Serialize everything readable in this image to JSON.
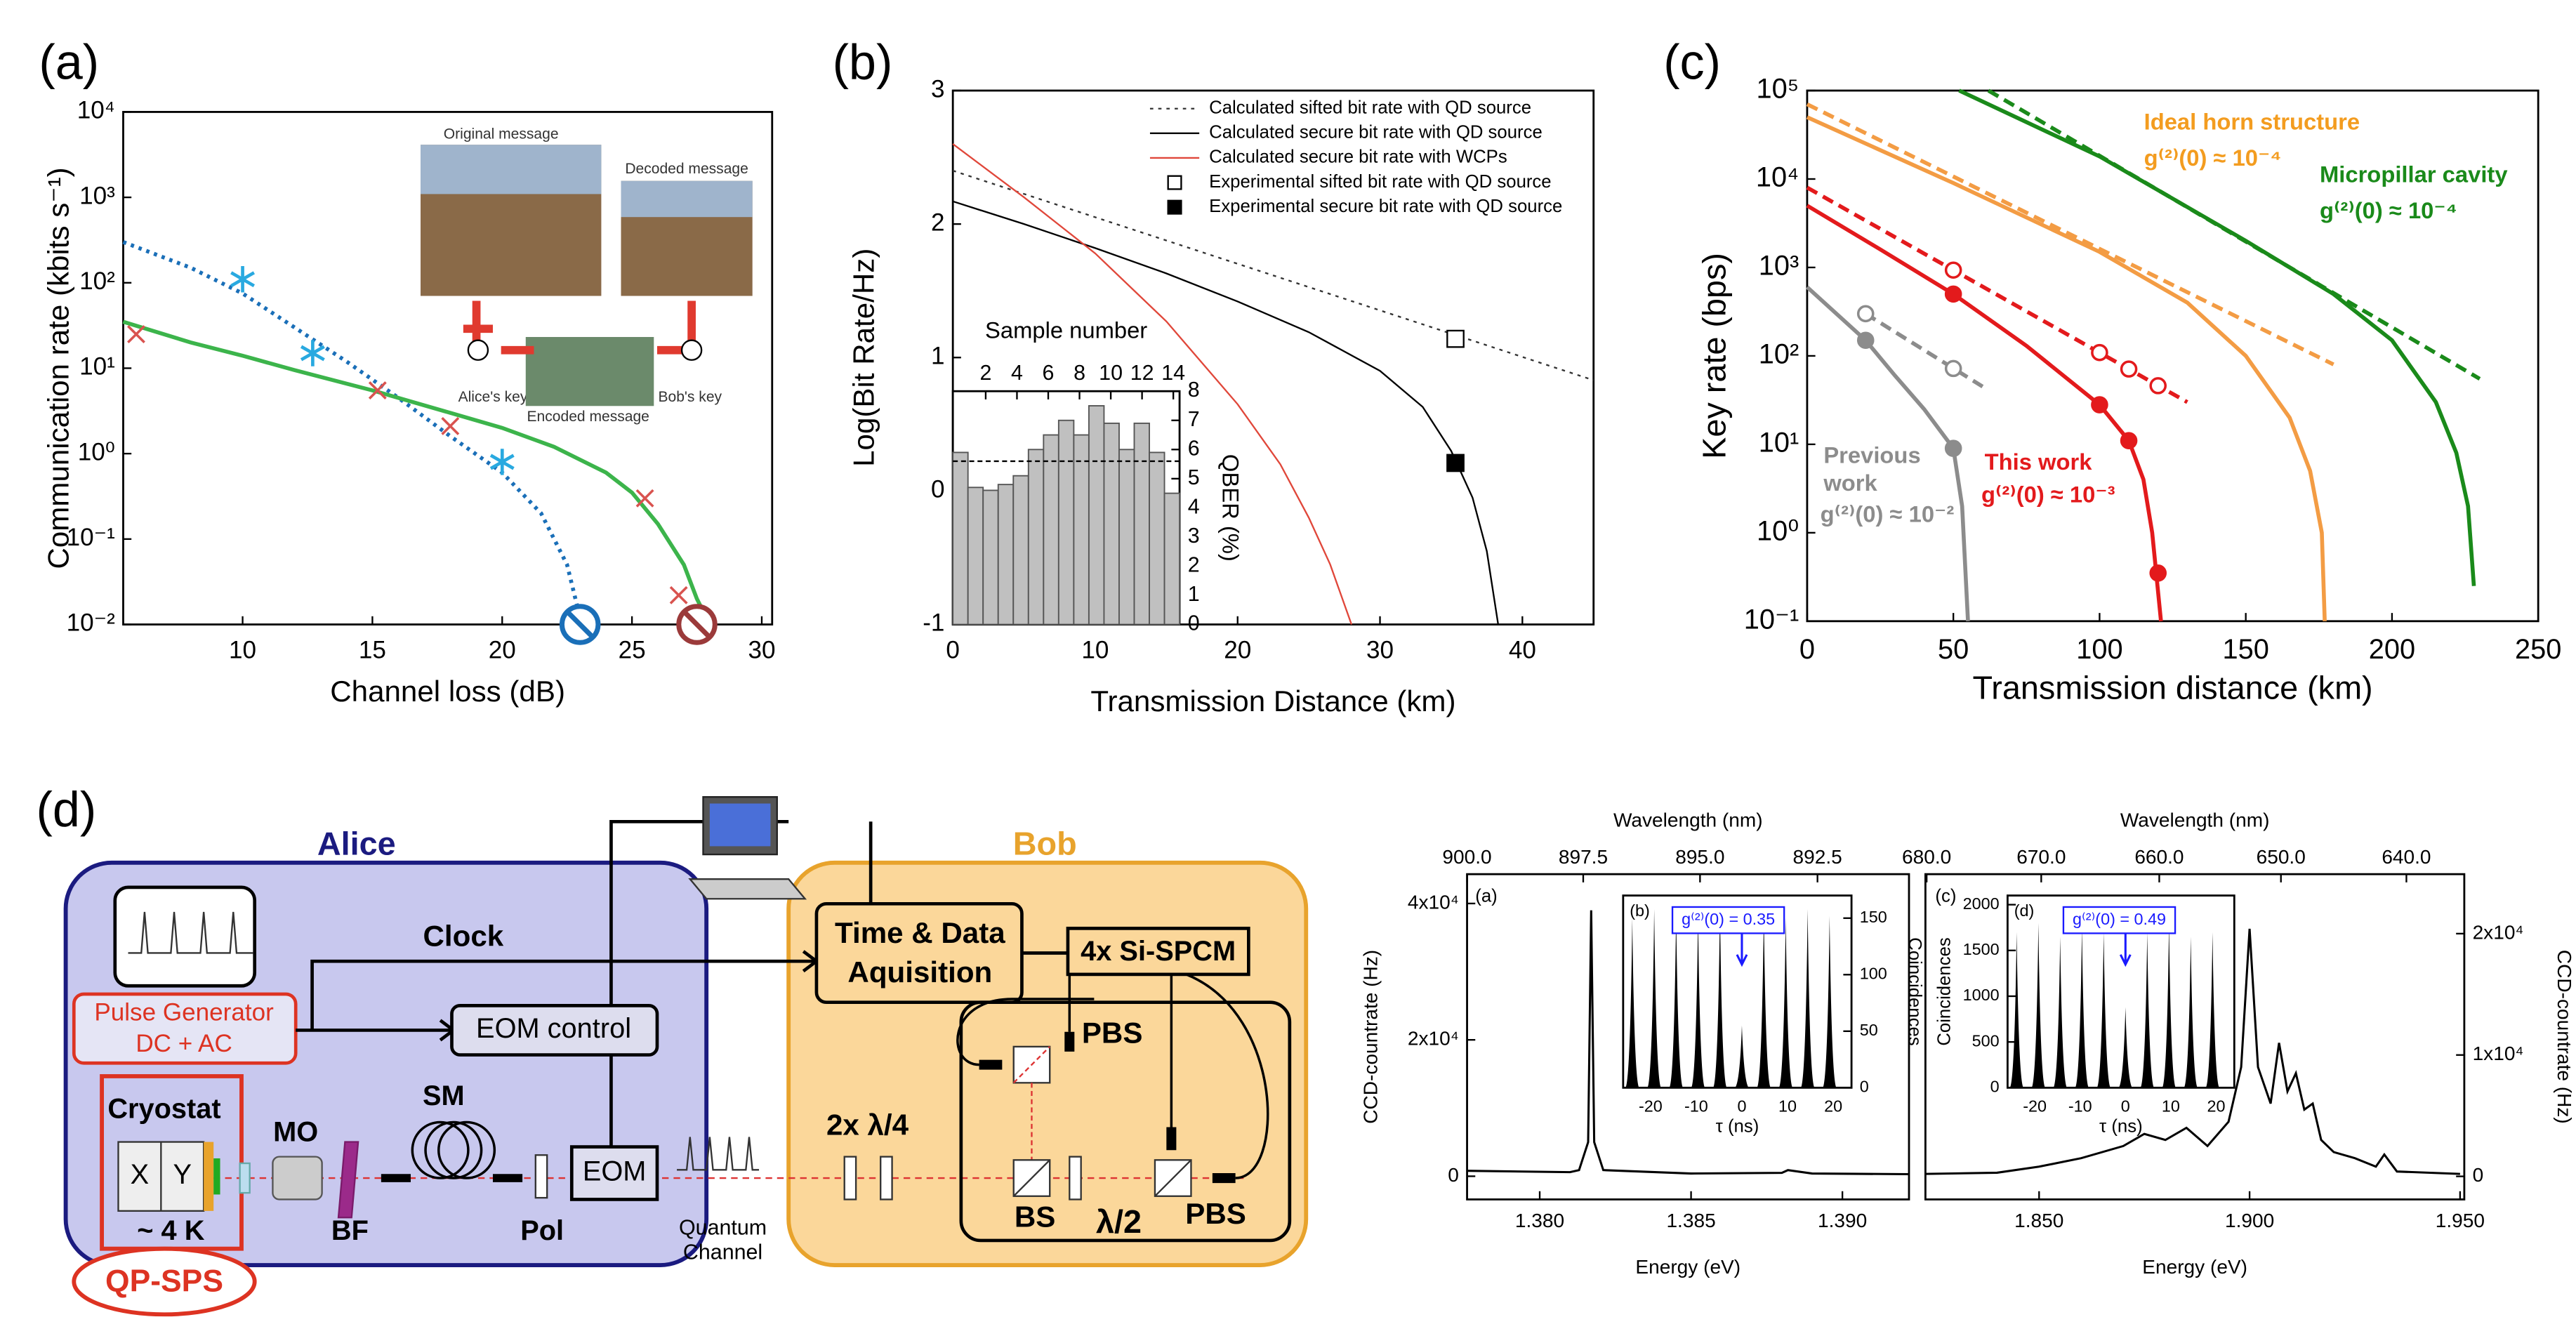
{
  "chart_data": [
    {
      "type": "line",
      "panel_label": "(a)",
      "x_label": "Channel loss (dB)",
      "y_label": "Communication rate (kbits s⁻¹)",
      "y_log": true,
      "xlim": [
        5.4,
        30.4
      ],
      "ylim": [
        0.01,
        10000
      ],
      "xticks": [
        10,
        15,
        20,
        25,
        30
      ],
      "yticks": [
        {
          "value": 0.01,
          "label": "10⁻²"
        },
        {
          "value": 0.1,
          "label": "10⁻¹"
        },
        {
          "value": 1,
          "label": "10⁰"
        },
        {
          "value": 10,
          "label": "10¹"
        },
        {
          "value": 100,
          "label": "10²"
        },
        {
          "value": 1000,
          "label": "10³"
        },
        {
          "value": 10000,
          "label": "10⁴"
        }
      ],
      "series": [
        {
          "color": "#1a6fb8",
          "line_style": "dotted",
          "marker": "none",
          "x": [
            5.4,
            8,
            10,
            12,
            14,
            16,
            18,
            20,
            21.5,
            22.5,
            23
          ],
          "values": [
            300,
            150,
            75,
            30,
            12,
            4.5,
            1.6,
            0.6,
            0.2,
            0.05,
            0.012
          ]
        },
        {
          "color": "#29a9e0",
          "line_style": "none",
          "marker": "asterisk",
          "x": [
            10,
            12.7,
            20
          ],
          "values": [
            110,
            15,
            0.8
          ]
        },
        {
          "color": "#3cb44b",
          "line_style": "solid",
          "marker": "none",
          "x": [
            5.4,
            8,
            10,
            12,
            15,
            18,
            20,
            22,
            24,
            25,
            26,
            27,
            27.5,
            28
          ],
          "values": [
            35,
            20,
            14,
            9.5,
            5.5,
            3,
            2,
            1.2,
            0.6,
            0.35,
            0.15,
            0.05,
            0.02,
            0.01
          ]
        },
        {
          "color": "#d9534f",
          "line_style": "none",
          "marker": "x",
          "x": [
            5.9,
            15.2,
            18,
            25.5,
            26.8
          ],
          "values": [
            25,
            5.5,
            2.1,
            0.3,
            0.022
          ]
        },
        {
          "color": "#1a6fb8",
          "line_style": "none",
          "marker": "prohibited",
          "x": [
            23
          ],
          "values": [
            0.01
          ]
        },
        {
          "color": "#9b3a3a",
          "line_style": "none",
          "marker": "prohibited",
          "x": [
            27.5
          ],
          "values": [
            0.01
          ]
        }
      ],
      "annotations": [
        {
          "text": "Original message",
          "color": "#333"
        },
        {
          "text": "Decoded message",
          "color": "#333"
        },
        {
          "text": "Encoded message",
          "color": "#333"
        },
        {
          "text": "Alice's key",
          "color": "#333"
        },
        {
          "text": "Bob's key",
          "color": "#333"
        }
      ]
    },
    {
      "type": "line",
      "panel_label": "(b)",
      "x_label": "Transmission Distance (km)",
      "y_label": "Log(Bit Rate/Hz)",
      "legend": "upper right",
      "xlim": [
        0,
        45
      ],
      "ylim": [
        -1,
        3
      ],
      "xticks": [
        0,
        10,
        20,
        30,
        40
      ],
      "yticks": [
        -1,
        0,
        1,
        2,
        3
      ],
      "series": [
        {
          "name": "Calculated sifted bit rate with QD source",
          "color": "#333",
          "line_style": "dotted",
          "marker": "none",
          "x": [
            0,
            45
          ],
          "values": [
            2.4,
            0.83
          ]
        },
        {
          "name": "Calculated secure bit rate with QD source",
          "color": "#000",
          "line_style": "solid",
          "marker": "none",
          "x": [
            0,
            5,
            10,
            15,
            20,
            25,
            30,
            33,
            35,
            36.5,
            37.5,
            38.3
          ],
          "values": [
            2.17,
            2.0,
            1.82,
            1.63,
            1.42,
            1.19,
            0.9,
            0.63,
            0.3,
            -0.05,
            -0.45,
            -1
          ]
        },
        {
          "name": "Calculated secure bit rate with WCPs",
          "color": "#e0473a",
          "line_style": "solid",
          "marker": "none",
          "x": [
            0,
            5,
            10,
            15,
            20,
            23,
            25,
            26.5,
            27.5,
            28
          ],
          "values": [
            2.6,
            2.2,
            1.78,
            1.27,
            0.65,
            0.2,
            -0.2,
            -0.55,
            -0.85,
            -1
          ]
        },
        {
          "name": "Experimental sifted bit rate with QD source",
          "color": "#000",
          "line_style": "none",
          "marker": "open_square",
          "x": [
            35.3
          ],
          "values": [
            1.14
          ]
        },
        {
          "name": "Experimental secure bit rate with QD source",
          "color": "#000",
          "line_style": "none",
          "marker": "square",
          "x": [
            35.3
          ],
          "values": [
            0.21
          ]
        }
      ]
    },
    {
      "type": "bar",
      "x2_label": "Sample number",
      "y_label": "QBER (%)",
      "y_axis_side": "right",
      "color": "#c0c0c0",
      "categories": [
        null,
        null,
        null,
        null,
        null,
        null,
        null,
        null,
        null,
        null,
        null,
        null,
        null,
        null,
        null
      ],
      "values": [
        5.9,
        4.7,
        4.6,
        4.8,
        5.1,
        6,
        6.5,
        7,
        6.5,
        7.5,
        6.9,
        6,
        6.9,
        5.9,
        4.5
      ],
      "reference_value": 5.6,
      "ylim": [
        0,
        8
      ],
      "yticks": [
        0,
        1,
        2,
        3,
        4,
        5,
        6,
        7,
        8
      ],
      "x2lim": [
        -0.1,
        14.4
      ],
      "x2ticks": [
        2,
        4,
        6,
        8,
        10,
        12,
        14
      ]
    },
    {
      "type": "line",
      "panel_label": "(c)",
      "x_label": "Transmission distance (km)",
      "y_label": "Key rate (bps)",
      "y_log": true,
      "xlim": [
        0,
        250
      ],
      "ylim": [
        0.1,
        100000
      ],
      "xticks": [
        0,
        50,
        100,
        150,
        200,
        250
      ],
      "yticks": [
        {
          "value": 0.1,
          "label": "10⁻¹"
        },
        {
          "value": 1,
          "label": "10⁰"
        },
        {
          "value": 10,
          "label": "10¹"
        },
        {
          "value": 100,
          "label": "10²"
        },
        {
          "value": 1000,
          "label": "10³"
        },
        {
          "value": 10000,
          "label": "10⁴"
        },
        {
          "value": 100000,
          "label": "10⁵"
        }
      ],
      "series": [
        {
          "color": "#8c8c8c",
          "line_style": "solid",
          "marker": "none",
          "x": [
            0,
            10,
            20,
            30,
            40,
            50,
            53,
            55
          ],
          "values": [
            600,
            300,
            150,
            60,
            25,
            9,
            2,
            0.1
          ]
        },
        {
          "color": "#8c8c8c",
          "line_style": "dashed",
          "marker": "none",
          "x": [
            20,
            60
          ],
          "values": [
            300,
            45
          ]
        },
        {
          "color": "#8c8c8c",
          "line_style": "none",
          "marker": "circle",
          "x": [
            20,
            50
          ],
          "values": [
            150,
            9
          ]
        },
        {
          "color": "#8c8c8c",
          "line_style": "none",
          "marker": "open_circle",
          "x": [
            20,
            50
          ],
          "values": [
            300,
            72
          ]
        },
        {
          "color": "#e31a1c",
          "line_style": "solid",
          "marker": "none",
          "x": [
            0,
            25,
            50,
            75,
            100,
            110,
            115,
            118,
            121
          ],
          "values": [
            5000,
            1600,
            500,
            130,
            28,
            11,
            4,
            1,
            0.1
          ]
        },
        {
          "color": "#e31a1c",
          "line_style": "dashed",
          "marker": "none",
          "x": [
            0,
            130
          ],
          "values": [
            8000,
            30
          ]
        },
        {
          "color": "#e31a1c",
          "line_style": "none",
          "marker": "circle",
          "x": [
            50,
            100,
            110,
            120
          ],
          "values": [
            500,
            28,
            11,
            0.35
          ]
        },
        {
          "color": "#e31a1c",
          "line_style": "none",
          "marker": "open_circle",
          "x": [
            50,
            100,
            110,
            120
          ],
          "values": [
            933,
            109,
            71,
            46
          ]
        },
        {
          "color": "#f39c44",
          "line_style": "solid",
          "marker": "none",
          "x": [
            0,
            50,
            100,
            130,
            150,
            165,
            172,
            176,
            177
          ],
          "values": [
            50000,
            9000,
            1500,
            400,
            100,
            20,
            5,
            1,
            0.1
          ]
        },
        {
          "color": "#f39c44",
          "line_style": "dashed",
          "marker": "none",
          "x": [
            0,
            180
          ],
          "values": [
            70000,
            80
          ]
        },
        {
          "color": "#1a8a1a",
          "line_style": "solid",
          "marker": "none",
          "x": [
            52,
            100,
            150,
            180,
            200,
            215,
            222,
            226,
            228
          ],
          "values": [
            100000,
            18000,
            2000,
            500,
            150,
            30,
            8,
            2,
            0.25
          ]
        },
        {
          "color": "#1a8a1a",
          "line_style": "dashed",
          "marker": "none",
          "x": [
            62,
            230
          ],
          "values": [
            100000,
            55
          ]
        }
      ],
      "annotations": [
        {
          "text": "Ideal horn structure",
          "color": "#f39c1f"
        },
        {
          "text": "g⁽²⁾(0) ≈ 10⁻⁴",
          "color": "#f39c1f"
        },
        {
          "text": "Micropillar cavity",
          "color": "#1a8a1a"
        },
        {
          "text": "g⁽²⁾(0) ≈ 10⁻⁴",
          "color": "#1a8a1a"
        },
        {
          "text": "This work",
          "color": "#e31a1c"
        },
        {
          "text": "g⁽²⁾(0) ≈ 10⁻³",
          "color": "#e31a1c"
        },
        {
          "text": "Previous",
          "color": "#8c8c8c"
        },
        {
          "text": "work",
          "color": "#8c8c8c"
        },
        {
          "text": "g⁽²⁾(0) ≈ 10⁻²",
          "color": "#8c8c8c"
        }
      ]
    },
    {
      "type": "line",
      "x_label": "Energy (eV)",
      "y_label": "CCD-countrate (Hz)",
      "x2_label": "Wavelength (nm)",
      "x2_scale": "reciprocal",
      "xlim": [
        1.3776,
        1.3922
      ],
      "ylim": [
        -3400,
        44300
      ],
      "xticks": [
        {
          "value": 1.38,
          "label": "1.380"
        },
        1.385,
        {
          "value": 1.39,
          "label": "1.390"
        }
      ],
      "yticks": [
        0,
        {
          "value": 20000,
          "label": "2x10⁴"
        },
        {
          "value": 40000,
          "label": "4x10⁴"
        }
      ],
      "x2ticks": [
        {
          "value": 900,
          "label": "900.0"
        },
        897.5,
        {
          "value": 895,
          "label": "895.0"
        },
        892.5
      ],
      "series": [
        {
          "color": "#000",
          "line_style": "solid",
          "marker": "none",
          "x": [
            1.3776,
            1.381,
            1.3813,
            1.3816,
            1.3817,
            1.3818,
            1.3821,
            1.385,
            1.388,
            1.3882,
            1.389,
            1.3922
          ],
          "values": [
            800,
            600,
            900,
            5000,
            39000,
            5000,
            900,
            400,
            500,
            900,
            400,
            300
          ]
        }
      ],
      "annotations": [
        {
          "text": "(a)",
          "color": "#000"
        }
      ]
    },
    {
      "type": "comb",
      "x_label": "τ (ns)",
      "y_label": "Coincidences",
      "y_axis_side": "right",
      "color": "#000",
      "xlim": [
        -26,
        24
      ],
      "ylim": [
        0,
        170
      ],
      "xticks": [
        -20,
        -10,
        0,
        10,
        20
      ],
      "yticks": [
        0,
        50,
        100,
        150
      ],
      "x": [
        -24,
        -19.2,
        -14.4,
        -9.6,
        -4.8,
        0,
        4.8,
        9.6,
        14.4,
        19.2
      ],
      "values": [
        150,
        158,
        155,
        152,
        160,
        55,
        155,
        150,
        158,
        152
      ],
      "annotations": [
        {
          "text": "(b)",
          "color": "#000"
        },
        {
          "text": "g⁽²⁾(0) = 0.35",
          "color": "#1a1aff"
        }
      ]
    },
    {
      "type": "line",
      "x_label": "Energy (eV)",
      "y_label": "CCD-countrate (Hz)",
      "y_axis_side": "right",
      "x2_label": "Wavelength (nm)",
      "x2_scale": "reciprocal",
      "xlim": [
        1.823,
        1.951
      ],
      "ylim": [
        -1900,
        24900
      ],
      "xticks": [
        {
          "value": 1.85,
          "label": "1.850"
        },
        {
          "value": 1.9,
          "label": "1.900"
        },
        {
          "value": 1.95,
          "label": "1.950"
        }
      ],
      "yticks": [
        0,
        {
          "value": 10000,
          "label": "1x10⁴"
        },
        {
          "value": 20000,
          "label": "2x10⁴"
        }
      ],
      "x2ticks": [
        {
          "value": 680,
          "label": "680.0"
        },
        {
          "value": 670,
          "label": "670.0"
        },
        {
          "value": 660,
          "label": "660.0"
        },
        {
          "value": 650,
          "label": "650.0"
        },
        {
          "value": 640,
          "label": "640.0"
        }
      ],
      "series": [
        {
          "color": "#000",
          "line_style": "solid",
          "marker": "none",
          "x": [
            1.823,
            1.84,
            1.85,
            1.86,
            1.87,
            1.875,
            1.88,
            1.885,
            1.89,
            1.895,
            1.898,
            1.9,
            1.902,
            1.905,
            1.907,
            1.909,
            1.911,
            1.913,
            1.915,
            1.917,
            1.92,
            1.925,
            1.93,
            1.932,
            1.935,
            1.95
          ],
          "values": [
            200,
            300,
            800,
            1500,
            2500,
            3500,
            3000,
            4000,
            2500,
            4500,
            9000,
            20400,
            9000,
            6000,
            11000,
            7000,
            8500,
            5500,
            6000,
            3000,
            2000,
            1500,
            800,
            1800,
            400,
            200
          ]
        }
      ],
      "annotations": [
        {
          "text": "(c)",
          "color": "#000"
        }
      ]
    },
    {
      "type": "comb",
      "x_label": "τ (ns)",
      "y_label": "Coincidences",
      "color": "#000",
      "xlim": [
        -26,
        24
      ],
      "ylim": [
        0,
        2100
      ],
      "xticks": [
        -20,
        -10,
        0,
        10,
        20
      ],
      "yticks": [
        0,
        500,
        1000,
        1500,
        2000
      ],
      "x": [
        -24,
        -19.2,
        -14.4,
        -9.6,
        -4.8,
        0,
        4.8,
        9.6,
        14.4,
        19.2
      ],
      "values": [
        1700,
        1800,
        1650,
        1750,
        1700,
        880,
        1700,
        1800,
        1650,
        1700
      ],
      "annotations": [
        {
          "text": "(d)",
          "color": "#000"
        },
        {
          "text": "g⁽²⁾(0) = 0.49",
          "color": "#1a1aff"
        }
      ]
    }
  ],
  "diagram": {
    "panel_label": "(d)",
    "alice": "Alice",
    "bob": "Bob",
    "clock": "Clock",
    "pulse_generator": [
      "Pulse Generator",
      "DC + AC"
    ],
    "eom_control": "EOM control",
    "cryostat": "Cryostat",
    "cryo_x": "X",
    "cryo_y": "Y",
    "temperature": "~ 4 K",
    "source": "QP-SPS",
    "mo": "MO",
    "bf": "BF",
    "sm": "SM",
    "pol": "Pol",
    "eom": "EOM",
    "quantum_channel": [
      "Quantum",
      "Channel"
    ],
    "time_data": [
      "Time & Data",
      "Aquisition"
    ],
    "spcm": "4x Si-SPCM",
    "pbs_top": "PBS",
    "bs": "BS",
    "half_wave": "λ/2",
    "pbs_bottom": "PBS",
    "quarter_wave": "2x λ/4"
  }
}
